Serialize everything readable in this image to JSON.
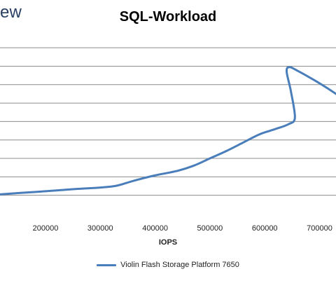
{
  "logo": {
    "text": "ew"
  },
  "chart_data": {
    "type": "line",
    "title": "SQL-Workload",
    "xlabel": "IOPS",
    "ylabel": "",
    "xlim": [
      117000,
      730000
    ],
    "ylim": [
      0,
      9.5
    ],
    "x_ticks": [
      200000,
      300000,
      400000,
      500000,
      600000,
      700000
    ],
    "x_tick_labels": [
      "200000",
      "300000",
      "400000",
      "500000",
      "600000",
      "700000"
    ],
    "y_gridlines": [
      1,
      2,
      3,
      4,
      5,
      6,
      7,
      8,
      9
    ],
    "grid": true,
    "legend_position": "bottom",
    "series": [
      {
        "name": "Violin Flash Storage Platform 7650",
        "color": "#4a7ebb",
        "points": [
          [
            117000,
            1.05
          ],
          [
            150000,
            1.12
          ],
          [
            200000,
            1.22
          ],
          [
            250000,
            1.33
          ],
          [
            300000,
            1.42
          ],
          [
            330000,
            1.52
          ],
          [
            360000,
            1.78
          ],
          [
            400000,
            2.08
          ],
          [
            440000,
            2.32
          ],
          [
            470000,
            2.6
          ],
          [
            500000,
            3.0
          ],
          [
            530000,
            3.4
          ],
          [
            560000,
            3.85
          ],
          [
            590000,
            4.3
          ],
          [
            620000,
            4.6
          ],
          [
            643000,
            4.85
          ],
          [
            655000,
            5.2
          ],
          [
            648000,
            6.6
          ],
          [
            640000,
            7.7
          ],
          [
            645000,
            7.95
          ],
          [
            660000,
            7.75
          ],
          [
            690000,
            7.25
          ],
          [
            712000,
            6.85
          ],
          [
            730000,
            6.5
          ]
        ]
      }
    ]
  }
}
